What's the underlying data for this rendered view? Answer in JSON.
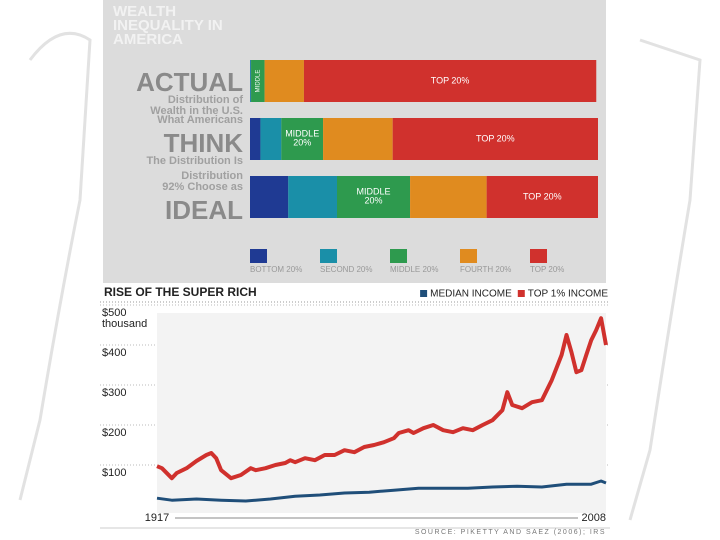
{
  "chart_data": [
    {
      "type": "stacked-bar",
      "title_lines": [
        "WEALTH",
        "INEQUALITY IN",
        "AMERICA"
      ],
      "xlim": [
        0,
        100
      ],
      "categories": [
        [
          "ACTUAL",
          "Distribution of",
          "Wealth in the U.S."
        ],
        [
          "What Americans",
          "THINK",
          "The Distribution Is"
        ],
        [
          "Distribution",
          "92% Choose as",
          "IDEAL"
        ]
      ],
      "series": [
        {
          "name": "BOTTOM 20%",
          "color": "#1f3a93",
          "values": [
            0.1,
            3,
            11
          ],
          "value_labels": [
            null,
            null,
            null
          ]
        },
        {
          "name": "SECOND 20%",
          "color": "#1a8fa8",
          "values": [
            0.2,
            6,
            14
          ],
          "value_labels": [
            null,
            null,
            null
          ]
        },
        {
          "name": "MIDDLE 20%",
          "color": "#2e9a4e",
          "values": [
            3.9,
            12,
            21
          ],
          "value_labels": [
            "MIDDLE",
            "MIDDLE 20%",
            "MIDDLE 20%"
          ]
        },
        {
          "name": "FOURTH 20%",
          "color": "#e08b1f",
          "values": [
            11.3,
            20,
            22
          ],
          "value_labels": [
            null,
            null,
            null
          ]
        },
        {
          "name": "TOP 20%",
          "color": "#d0312d",
          "values": [
            84,
            59,
            32
          ],
          "value_labels": [
            "TOP 20%",
            "TOP 20%",
            "TOP 20%"
          ]
        }
      ]
    },
    {
      "type": "line",
      "title": "RISE OF THE SUPER RICH",
      "y_unit": "thousand",
      "source": "SOURCE: PIKETTY AND SAEZ (2006); IRS",
      "xlim": [
        1917,
        2008
      ],
      "xticks": [
        1917,
        2008
      ],
      "ylim": [
        0,
        500
      ],
      "yticks": [
        {
          "value": 100,
          "label": "$100"
        },
        {
          "value": 200,
          "label": "$200"
        },
        {
          "value": 300,
          "label": "$300"
        },
        {
          "value": 400,
          "label": "$400"
        },
        {
          "value": 500,
          "label": "$500"
        }
      ],
      "grid": true,
      "series": [
        {
          "name": "MEDIAN INCOME",
          "color": "#1f4e79",
          "x": [
            1917,
            1920,
            1925,
            1930,
            1935,
            1940,
            1945,
            1950,
            1955,
            1960,
            1965,
            1970,
            1975,
            1980,
            1985,
            1990,
            1995,
            2000,
            2005,
            2007,
            2008
          ],
          "values": [
            37,
            32,
            35,
            32,
            30,
            35,
            42,
            45,
            50,
            52,
            57,
            62,
            62,
            62,
            65,
            67,
            65,
            72,
            72,
            80,
            75
          ]
        },
        {
          "name": "TOP 1% INCOME",
          "color": "#d0312d",
          "x": [
            1917,
            1918,
            1920,
            1921,
            1923,
            1925,
            1927,
            1928,
            1929,
            1930,
            1932,
            1934,
            1936,
            1937,
            1939,
            1941,
            1943,
            1944,
            1945,
            1947,
            1949,
            1951,
            1953,
            1955,
            1957,
            1959,
            1961,
            1963,
            1965,
            1966,
            1968,
            1969,
            1971,
            1973,
            1975,
            1977,
            1979,
            1981,
            1983,
            1985,
            1987,
            1988,
            1989,
            1991,
            1993,
            1995,
            1997,
            1999,
            2000,
            2001,
            2002,
            2003,
            2004,
            2005,
            2006,
            2007,
            2008
          ],
          "values": [
            117,
            112,
            87,
            100,
            112,
            130,
            145,
            150,
            137,
            107,
            87,
            95,
            112,
            107,
            112,
            120,
            125,
            132,
            127,
            137,
            132,
            145,
            145,
            157,
            152,
            165,
            170,
            177,
            187,
            200,
            207,
            200,
            212,
            220,
            207,
            202,
            212,
            207,
            220,
            232,
            257,
            302,
            270,
            262,
            277,
            282,
            332,
            395,
            445,
            402,
            352,
            357,
            395,
            432,
            457,
            487,
            420
          ]
        }
      ]
    }
  ]
}
